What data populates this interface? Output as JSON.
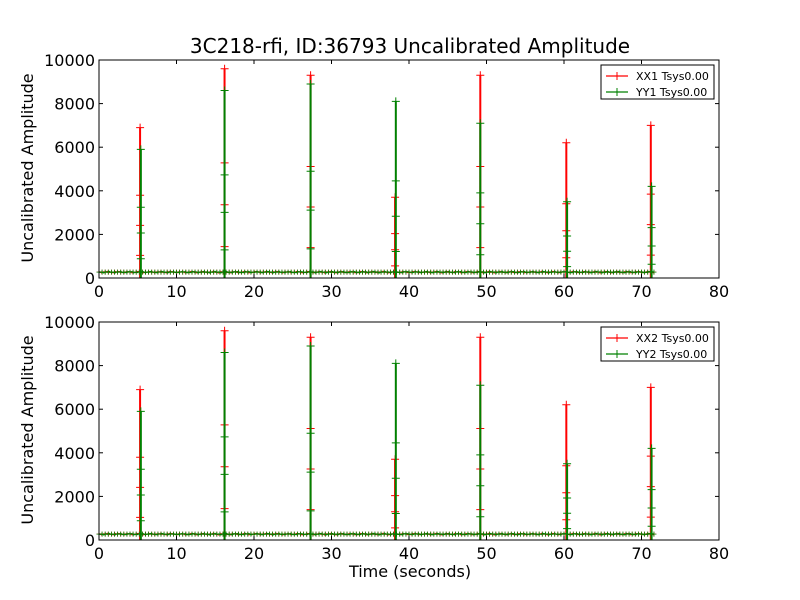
{
  "chart_data": [
    {
      "type": "line",
      "title": "3C218-rfi, ID:36793 Uncalibrated Amplitude",
      "xlabel": "",
      "ylabel": "Uncalibrated Amplitude",
      "xlim": [
        0,
        80
      ],
      "ylim": [
        0,
        10000
      ],
      "x_ticks": [
        "0",
        "10",
        "20",
        "30",
        "40",
        "50",
        "60",
        "70",
        "80"
      ],
      "y_ticks": [
        "0",
        "2000",
        "4000",
        "6000",
        "8000",
        "10000"
      ],
      "baseline": 270,
      "legend_position": "top-right",
      "series": [
        {
          "name": "XX1 Tsys0.00",
          "color": "#ff0000",
          "spikes": [
            {
              "x": 5.3,
              "y": 6900
            },
            {
              "x": 16.2,
              "y": 9600
            },
            {
              "x": 27.3,
              "y": 9300
            },
            {
              "x": 38.2,
              "y": 3700
            },
            {
              "x": 49.2,
              "y": 9300
            },
            {
              "x": 60.3,
              "y": 6200
            },
            {
              "x": 71.2,
              "y": 7000
            }
          ]
        },
        {
          "name": "YY1 Tsys0.00",
          "color": "#008000",
          "spikes": [
            {
              "x": 5.4,
              "y": 5900
            },
            {
              "x": 16.2,
              "y": 8600
            },
            {
              "x": 27.3,
              "y": 8900
            },
            {
              "x": 38.3,
              "y": 8100
            },
            {
              "x": 49.2,
              "y": 7100
            },
            {
              "x": 60.4,
              "y": 3500
            },
            {
              "x": 71.3,
              "y": 4200
            }
          ]
        }
      ]
    },
    {
      "type": "line",
      "title": "",
      "xlabel": "Time (seconds)",
      "ylabel": "Uncalibrated Amplitude",
      "xlim": [
        0,
        80
      ],
      "ylim": [
        0,
        10000
      ],
      "x_ticks": [
        "0",
        "10",
        "20",
        "30",
        "40",
        "50",
        "60",
        "70",
        "80"
      ],
      "y_ticks": [
        "0",
        "2000",
        "4000",
        "6000",
        "8000",
        "10000"
      ],
      "baseline": 270,
      "legend_position": "top-right",
      "series": [
        {
          "name": "XX2 Tsys0.00",
          "color": "#ff0000",
          "spikes": [
            {
              "x": 5.3,
              "y": 6900
            },
            {
              "x": 16.2,
              "y": 9600
            },
            {
              "x": 27.3,
              "y": 9300
            },
            {
              "x": 38.2,
              "y": 3700
            },
            {
              "x": 49.2,
              "y": 9300
            },
            {
              "x": 60.3,
              "y": 6200
            },
            {
              "x": 71.2,
              "y": 7000
            }
          ]
        },
        {
          "name": "YY2 Tsys0.00",
          "color": "#008000",
          "spikes": [
            {
              "x": 5.4,
              "y": 5900
            },
            {
              "x": 16.2,
              "y": 8600
            },
            {
              "x": 27.3,
              "y": 8900
            },
            {
              "x": 38.3,
              "y": 8100
            },
            {
              "x": 49.2,
              "y": 7100
            },
            {
              "x": 60.4,
              "y": 3500
            },
            {
              "x": 71.3,
              "y": 4200
            }
          ]
        }
      ]
    }
  ]
}
